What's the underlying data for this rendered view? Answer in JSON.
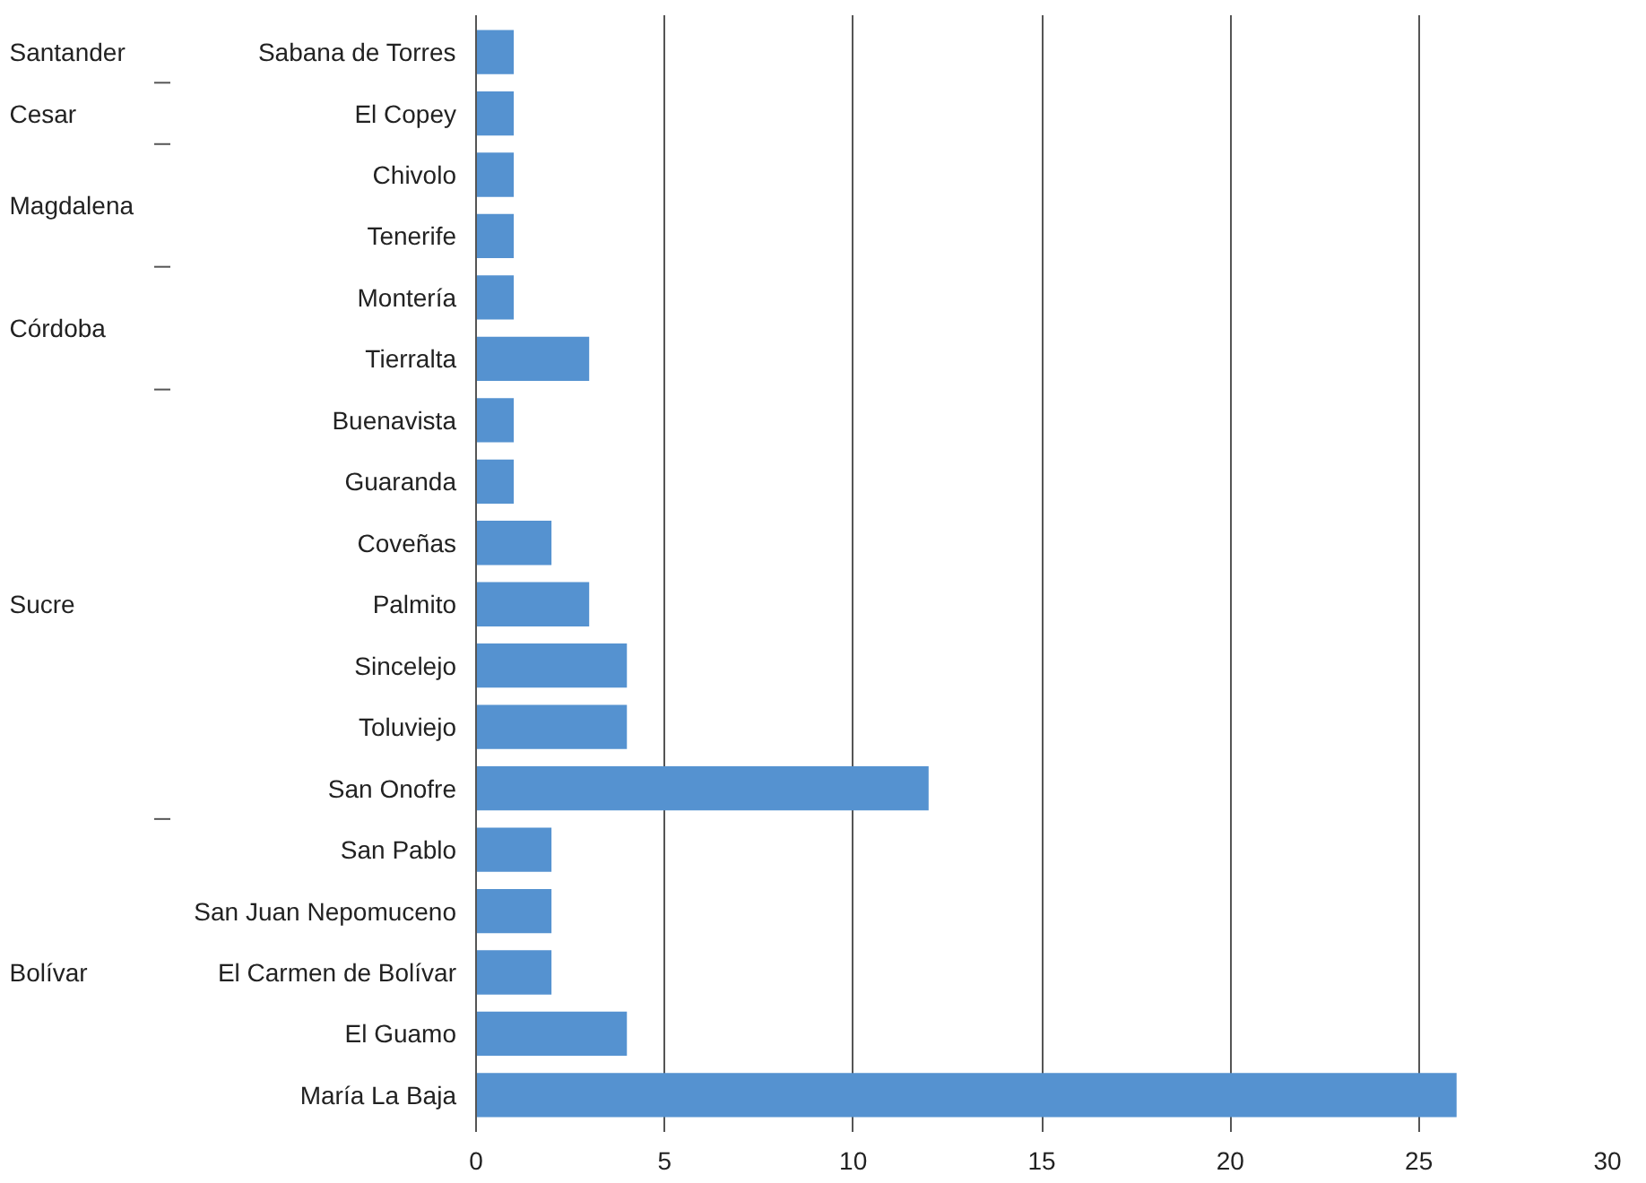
{
  "chart_data": {
    "type": "bar",
    "orientation": "horizontal",
    "categories": [
      "Sabana de Torres",
      "El Copey",
      "Chivolo",
      "Tenerife",
      "Montería",
      "Tierralta",
      "Buenavista",
      "Guaranda",
      "Coveñas",
      "Palmito",
      "Sincelejo",
      "Toluviejo",
      "San Onofre",
      "San Pablo",
      "San Juan Nepomuceno",
      "El Carmen de Bolívar",
      "El Guamo",
      "María La Baja"
    ],
    "values": [
      1,
      1,
      1,
      1,
      1,
      3,
      1,
      1,
      2,
      3,
      4,
      4,
      12,
      2,
      2,
      2,
      4,
      26
    ],
    "color": "#5592d0",
    "xlim": [
      0,
      30
    ],
    "xticks": [
      0,
      5,
      10,
      15,
      20,
      25,
      30
    ],
    "grid": "x",
    "annotations": [
      "Santander",
      "Cesar",
      "Magdalena",
      "Córdoba",
      "Sucre",
      "Bolívar"
    ]
  }
}
